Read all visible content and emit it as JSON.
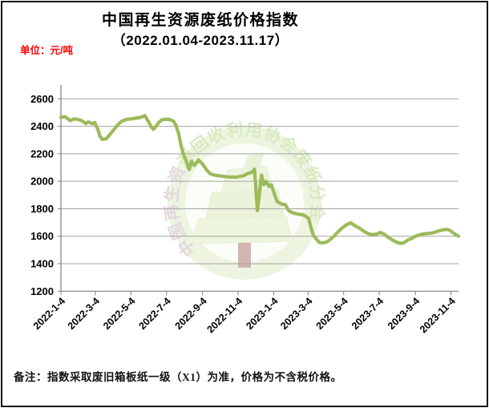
{
  "header": {
    "title": "中国再生资源废纸价格指数",
    "subtitle": "（2022.01.04-2023.11.17）",
    "unit_label": "单位：元/吨"
  },
  "footer": {
    "note": "备注：指数采取废旧箱板纸一级（X1）为准，价格为不含税价格。"
  },
  "watermark": {
    "text_left": "中国再生资",
    "text_right": "源回收利用协会废纸分会"
  },
  "colors": {
    "line": "#9bbb59",
    "unit_text": "#ff0000",
    "gridline": "#a3a3a3",
    "axis": "#7f7f7f",
    "tick_text": "#000000",
    "watermark_ring": "#e9f3da",
    "watermark_text_green": "#d2e5b6",
    "watermark_text_pink": "#ddcfd8",
    "tree_fill": "#eaf3d8",
    "trunk_fill": "#c8a39b"
  },
  "chart_data": {
    "type": "line",
    "title": "中国再生资源废纸价格指数（2022.01.04-2023.11.17）",
    "ylabel": "元/吨",
    "ylim": [
      1200,
      2600
    ],
    "y_ticks": [
      1200,
      1400,
      1600,
      1800,
      2000,
      2200,
      2400,
      2600
    ],
    "x_tick_labels": [
      "2022-1-4",
      "2022-3-4",
      "2022-5-4",
      "2022-7-4",
      "2022-9-4",
      "2022-11-4",
      "2023-1-4",
      "2023-3-4",
      "2023-5-4",
      "2023-7-4",
      "2023-9-4",
      "2023-11-4"
    ],
    "x_range": [
      "2022-1-4",
      "2023-11-17"
    ],
    "grid": true,
    "legend": false,
    "series": [
      {
        "name": "废纸价格指数",
        "points": [
          [
            "2022-01-04",
            2465
          ],
          [
            "2022-01-11",
            2470
          ],
          [
            "2022-01-20",
            2442
          ],
          [
            "2022-01-27",
            2455
          ],
          [
            "2022-02-07",
            2445
          ],
          [
            "2022-02-16",
            2420
          ],
          [
            "2022-02-20",
            2432
          ],
          [
            "2022-02-27",
            2418
          ],
          [
            "2022-03-03",
            2428
          ],
          [
            "2022-03-08",
            2382
          ],
          [
            "2022-03-12",
            2328
          ],
          [
            "2022-03-16",
            2305
          ],
          [
            "2022-03-23",
            2310
          ],
          [
            "2022-03-28",
            2336
          ],
          [
            "2022-04-04",
            2372
          ],
          [
            "2022-04-11",
            2408
          ],
          [
            "2022-04-18",
            2436
          ],
          [
            "2022-04-26",
            2450
          ],
          [
            "2022-05-06",
            2455
          ],
          [
            "2022-05-16",
            2462
          ],
          [
            "2022-05-21",
            2465
          ],
          [
            "2022-05-28",
            2478
          ],
          [
            "2022-06-04",
            2428
          ],
          [
            "2022-06-08",
            2395
          ],
          [
            "2022-06-12",
            2378
          ],
          [
            "2022-06-19",
            2418
          ],
          [
            "2022-06-25",
            2445
          ],
          [
            "2022-07-02",
            2452
          ],
          [
            "2022-07-09",
            2450
          ],
          [
            "2022-07-16",
            2438
          ],
          [
            "2022-07-20",
            2410
          ],
          [
            "2022-07-25",
            2345
          ],
          [
            "2022-07-29",
            2262
          ],
          [
            "2022-08-02",
            2198
          ],
          [
            "2022-08-08",
            2135
          ],
          [
            "2022-08-12",
            2085
          ],
          [
            "2022-08-16",
            2145
          ],
          [
            "2022-08-21",
            2115
          ],
          [
            "2022-08-28",
            2155
          ],
          [
            "2022-09-04",
            2125
          ],
          [
            "2022-09-11",
            2082
          ],
          [
            "2022-09-17",
            2055
          ],
          [
            "2022-09-24",
            2045
          ],
          [
            "2022-10-05",
            2038
          ],
          [
            "2022-10-18",
            2032
          ],
          [
            "2022-11-01",
            2030
          ],
          [
            "2022-11-14",
            2042
          ],
          [
            "2022-11-21",
            2058
          ],
          [
            "2022-11-28",
            2065
          ],
          [
            "2022-12-02",
            2088
          ],
          [
            "2022-12-07",
            1788
          ],
          [
            "2022-12-14",
            2045
          ],
          [
            "2022-12-18",
            1975
          ],
          [
            "2022-12-22",
            2000
          ],
          [
            "2022-12-27",
            1962
          ],
          [
            "2022-12-31",
            1975
          ],
          [
            "2023-01-05",
            1908
          ],
          [
            "2023-01-10",
            1852
          ],
          [
            "2023-01-17",
            1835
          ],
          [
            "2023-01-24",
            1830
          ],
          [
            "2023-01-29",
            1790
          ],
          [
            "2023-02-03",
            1775
          ],
          [
            "2023-02-10",
            1765
          ],
          [
            "2023-02-17",
            1760
          ],
          [
            "2023-02-24",
            1755
          ],
          [
            "2023-02-28",
            1745
          ],
          [
            "2023-03-05",
            1728
          ],
          [
            "2023-03-09",
            1662
          ],
          [
            "2023-03-13",
            1608
          ],
          [
            "2023-03-19",
            1575
          ],
          [
            "2023-03-23",
            1556
          ],
          [
            "2023-03-29",
            1552
          ],
          [
            "2023-04-05",
            1558
          ],
          [
            "2023-04-12",
            1580
          ],
          [
            "2023-04-19",
            1607
          ],
          [
            "2023-04-25",
            1635
          ],
          [
            "2023-05-02",
            1662
          ],
          [
            "2023-05-09",
            1684
          ],
          [
            "2023-05-16",
            1698
          ],
          [
            "2023-05-22",
            1680
          ],
          [
            "2023-06-01",
            1656
          ],
          [
            "2023-06-08",
            1635
          ],
          [
            "2023-06-14",
            1621
          ],
          [
            "2023-06-21",
            1612
          ],
          [
            "2023-06-29",
            1615
          ],
          [
            "2023-07-06",
            1627
          ],
          [
            "2023-07-13",
            1615
          ],
          [
            "2023-07-19",
            1592
          ],
          [
            "2023-07-29",
            1567
          ],
          [
            "2023-08-03",
            1556
          ],
          [
            "2023-08-09",
            1548
          ],
          [
            "2023-08-15",
            1552
          ],
          [
            "2023-08-22",
            1572
          ],
          [
            "2023-08-29",
            1585
          ],
          [
            "2023-09-04",
            1600
          ],
          [
            "2023-09-11",
            1610
          ],
          [
            "2023-09-18",
            1617
          ],
          [
            "2023-09-24",
            1620
          ],
          [
            "2023-10-01",
            1622
          ],
          [
            "2023-10-08",
            1630
          ],
          [
            "2023-10-14",
            1639
          ],
          [
            "2023-10-21",
            1646
          ],
          [
            "2023-10-27",
            1650
          ],
          [
            "2023-11-01",
            1645
          ],
          [
            "2023-11-07",
            1628
          ],
          [
            "2023-11-12",
            1612
          ],
          [
            "2023-11-17",
            1600
          ]
        ]
      }
    ]
  }
}
